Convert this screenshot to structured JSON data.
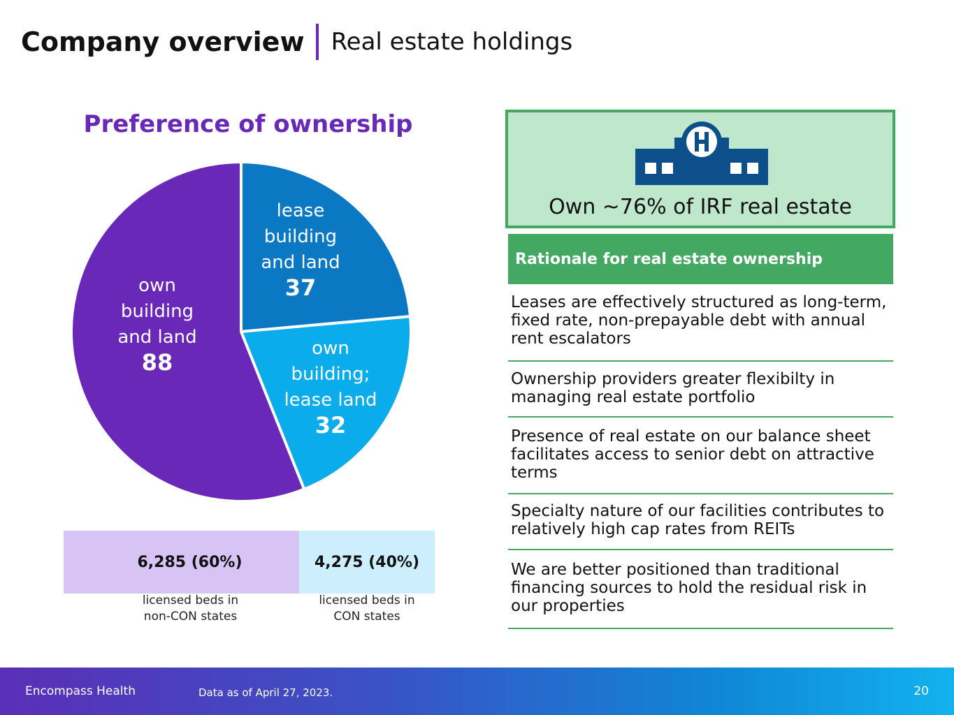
{
  "header": {
    "title": "Company overview",
    "subtitle": "Real estate holdings"
  },
  "chart_data": {
    "type": "pie",
    "title": "Preference of ownership",
    "categories": [
      "lease building and land",
      "own building; lease land",
      "own building and land"
    ],
    "values": [
      37,
      32,
      88
    ],
    "label_lines": [
      [
        "lease",
        "building",
        "and land"
      ],
      [
        "own",
        "building;",
        "lease land"
      ],
      [
        "own",
        "building",
        "and land"
      ]
    ],
    "colors": [
      "#0a78c2",
      "#0aacec",
      "#6a28b8"
    ],
    "start_angle_deg": 0,
    "direction": "clockwise"
  },
  "beds": {
    "non_con": {
      "value": "6,285 (60%)",
      "caption_line1": "licensed beds in",
      "caption_line2": "non-CON states"
    },
    "con": {
      "value": "4,275 (40%)",
      "caption_line1": "licensed beds in",
      "caption_line2": "CON states"
    }
  },
  "ownership_callout": {
    "icon": "hospital-icon",
    "text": "Own ~76% of IRF real estate"
  },
  "rationale": {
    "header": "Rationale for real estate ownership",
    "items": [
      "Leases are effectively structured as long-term, fixed rate, non-prepayable debt with annual rent escalators",
      "Ownership providers greater flexibilty in managing real estate portfolio",
      "Presence of real estate on our balance sheet facilitates access to senior debt on attractive terms",
      "Specialty nature of our facilities contributes to relatively high cap rates from REITs",
      "We are better positioned than traditional financing sources to hold the residual risk in our properties"
    ]
  },
  "footer": {
    "company": "Encompass Health",
    "note": "Data as of April 27, 2023.",
    "page": "20"
  },
  "colors": {
    "accent_purple": "#6a28b8",
    "accent_green": "#43a862",
    "light_green": "#bfe7cc",
    "hospital_blue": "#0d4f8b"
  }
}
